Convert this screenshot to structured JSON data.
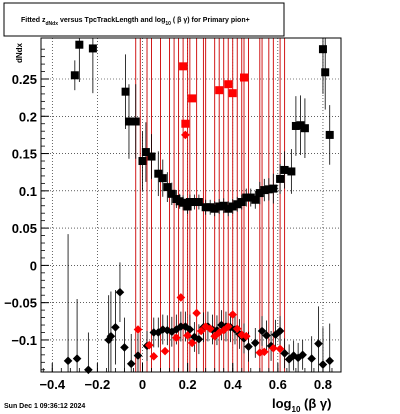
{
  "chart_data": {
    "type": "scatter",
    "title": {
      "prefix": "Fitted  z",
      "sub1": "dNdx",
      "mid": "  versus TpcTrackLength and log",
      "sub2": "10",
      "suffix": " ( β γ) for Primary pion+"
    },
    "ylabel": "dNdx",
    "xlabel": {
      "main": "log",
      "sub": "10",
      "suffix": " (β γ)"
    },
    "xlim": [
      -0.45,
      0.88
    ],
    "ylim": [
      -0.143,
      0.305
    ],
    "xticks": [
      -0.4,
      -0.2,
      0,
      0.2,
      0.4,
      0.6,
      0.8
    ],
    "xtick_labels": [
      "−0.4",
      "−0.2",
      "0",
      "0.2",
      "0.4",
      "0.6",
      "0.8"
    ],
    "yticks": [
      -0.1,
      -0.05,
      0,
      0.05,
      0.1,
      0.15,
      0.2,
      0.25
    ],
    "ytick_labels": [
      "−0.1",
      "−0.05",
      "0",
      "0.05",
      "0.1",
      "0.15",
      "0.2",
      "0.25"
    ],
    "grid": true,
    "series": [
      {
        "marker": "square",
        "color": "#000000",
        "points": [
          [
            -0.3,
            0.255,
            0.02
          ],
          [
            -0.28,
            0.296,
            0.05
          ],
          [
            -0.22,
            0.291,
            0.06
          ],
          [
            -0.075,
            0.233,
            0.05
          ],
          [
            -0.06,
            0.193,
            0.05
          ],
          [
            -0.03,
            0.193,
            0.05
          ],
          [
            0.0,
            0.14,
            0.04
          ],
          [
            0.015,
            0.152,
            0.04
          ],
          [
            0.04,
            0.146,
            0.03
          ],
          [
            0.07,
            0.123,
            0.03
          ],
          [
            0.09,
            0.117,
            0.025
          ],
          [
            0.11,
            0.105,
            0.02
          ],
          [
            0.13,
            0.096,
            0.015
          ],
          [
            0.15,
            0.089,
            0.012
          ],
          [
            0.165,
            0.086,
            0.01
          ],
          [
            0.18,
            0.084,
            0.01
          ],
          [
            0.2,
            0.079,
            0.01
          ],
          [
            0.21,
            0.085,
            0.01
          ],
          [
            0.23,
            0.085,
            0.01
          ],
          [
            0.25,
            0.085,
            0.01
          ],
          [
            0.28,
            0.078,
            0.01
          ],
          [
            0.3,
            0.078,
            0.01
          ],
          [
            0.32,
            0.076,
            0.01
          ],
          [
            0.34,
            0.079,
            0.01
          ],
          [
            0.36,
            0.08,
            0.01
          ],
          [
            0.38,
            0.076,
            0.01
          ],
          [
            0.4,
            0.079,
            0.01
          ],
          [
            0.42,
            0.082,
            0.01
          ],
          [
            0.44,
            0.085,
            0.01
          ],
          [
            0.46,
            0.091,
            0.012
          ],
          [
            0.48,
            0.091,
            0.012
          ],
          [
            0.5,
            0.088,
            0.012
          ],
          [
            0.52,
            0.097,
            0.015
          ],
          [
            0.54,
            0.101,
            0.015
          ],
          [
            0.56,
            0.102,
            0.015
          ],
          [
            0.58,
            0.103,
            0.02
          ],
          [
            0.61,
            0.116,
            0.02
          ],
          [
            0.63,
            0.128,
            0.025
          ],
          [
            0.66,
            0.126,
            0.03
          ],
          [
            0.68,
            0.187,
            0.04
          ],
          [
            0.7,
            0.188,
            0.04
          ],
          [
            0.72,
            0.184,
            0.04
          ],
          [
            0.8,
            0.29,
            0.06
          ],
          [
            0.81,
            0.259,
            0.05
          ],
          [
            0.83,
            0.175,
            0.04
          ]
        ]
      },
      {
        "marker": "diamond",
        "color": "#000000",
        "points": [
          [
            -0.33,
            -0.128,
            0.17
          ],
          [
            -0.29,
            -0.125,
            0.08
          ],
          [
            -0.24,
            -0.14,
            0.05
          ],
          [
            -0.15,
            -0.1,
            0.06
          ],
          [
            -0.14,
            -0.095,
            0.06
          ],
          [
            -0.12,
            -0.083,
            0.05
          ],
          [
            -0.1,
            -0.036,
            0.04
          ],
          [
            -0.08,
            -0.11,
            0.04
          ],
          [
            -0.05,
            -0.132,
            0.04
          ],
          [
            -0.02,
            -0.121,
            0.03
          ],
          [
            0.02,
            -0.108,
            0.02
          ],
          [
            0.05,
            -0.09,
            0.02
          ],
          [
            0.07,
            -0.09,
            0.02
          ],
          [
            0.09,
            -0.086,
            0.02
          ],
          [
            0.11,
            -0.087,
            0.02
          ],
          [
            0.13,
            -0.089,
            0.02
          ],
          [
            0.15,
            -0.086,
            0.02
          ],
          [
            0.17,
            -0.082,
            0.02
          ],
          [
            0.19,
            -0.082,
            0.02
          ],
          [
            0.21,
            -0.086,
            0.02
          ],
          [
            0.23,
            -0.096,
            0.02
          ],
          [
            0.25,
            -0.099,
            0.02
          ],
          [
            0.27,
            -0.083,
            0.02
          ],
          [
            0.29,
            -0.082,
            0.02
          ],
          [
            0.31,
            -0.086,
            0.02
          ],
          [
            0.33,
            -0.087,
            0.02
          ],
          [
            0.35,
            -0.08,
            0.02
          ],
          [
            0.37,
            -0.082,
            0.02
          ],
          [
            0.39,
            -0.083,
            0.02
          ],
          [
            0.41,
            -0.086,
            0.02
          ],
          [
            0.43,
            -0.092,
            0.02
          ],
          [
            0.45,
            -0.098,
            0.02
          ],
          [
            0.47,
            -0.109,
            0.02
          ],
          [
            0.5,
            -0.104,
            0.02
          ],
          [
            0.53,
            -0.088,
            0.02
          ],
          [
            0.55,
            -0.094,
            0.02
          ],
          [
            0.57,
            -0.108,
            0.02
          ],
          [
            0.59,
            -0.093,
            0.02
          ],
          [
            0.61,
            -0.088,
            0.02
          ],
          [
            0.63,
            -0.118,
            0.02
          ],
          [
            0.65,
            -0.126,
            0.02
          ],
          [
            0.67,
            -0.121,
            0.02
          ],
          [
            0.69,
            -0.124,
            0.02
          ],
          [
            0.71,
            -0.12,
            0.02
          ],
          [
            0.75,
            -0.125,
            0.03
          ],
          [
            0.78,
            -0.105,
            0.05
          ],
          [
            0.8,
            -0.133,
            0.05
          ],
          [
            0.83,
            -0.128,
            0.05
          ]
        ]
      },
      {
        "marker": "square",
        "color": "#ff0000",
        "points": [
          [
            0.18,
            0.267
          ],
          [
            0.19,
            0.19
          ],
          [
            0.22,
            0.224
          ],
          [
            0.34,
            0.235
          ],
          [
            0.38,
            0.243
          ],
          [
            0.4,
            0.231
          ],
          [
            0.45,
            0.252
          ]
        ]
      },
      {
        "marker": "diamond",
        "color": "#ff0000",
        "points": [
          [
            -0.02,
            -0.086
          ],
          [
            0.03,
            -0.107
          ],
          [
            0.05,
            -0.122
          ],
          [
            0.1,
            -0.115
          ],
          [
            0.15,
            -0.097
          ],
          [
            0.17,
            -0.043
          ],
          [
            0.2,
            -0.094
          ],
          [
            0.22,
            -0.104
          ],
          [
            0.24,
            -0.064
          ],
          [
            0.26,
            -0.088
          ],
          [
            0.28,
            -0.082
          ],
          [
            0.3,
            -0.085
          ],
          [
            0.32,
            -0.095
          ],
          [
            0.34,
            -0.09
          ],
          [
            0.36,
            -0.087
          ],
          [
            0.38,
            -0.082
          ],
          [
            0.4,
            -0.066
          ],
          [
            0.42,
            -0.085
          ],
          [
            0.44,
            -0.093
          ],
          [
            0.46,
            -0.095
          ],
          [
            0.52,
            -0.117
          ],
          [
            0.54,
            -0.116
          ],
          [
            0.58,
            -0.111
          ],
          [
            0.61,
            -0.112
          ],
          [
            0.19,
            0.175
          ]
        ]
      }
    ],
    "vertical_lines": {
      "color": "#cc0000",
      "x": [
        -0.03,
        -0.01,
        0.02,
        0.04,
        0.08,
        0.12,
        0.14,
        0.16,
        0.18,
        0.2,
        0.21,
        0.24,
        0.27,
        0.28,
        0.32,
        0.34,
        0.36,
        0.38,
        0.4,
        0.42,
        0.44,
        0.45,
        0.47,
        0.52,
        0.53,
        0.56,
        0.58,
        0.61,
        0.63
      ]
    }
  },
  "footer": {
    "timestamp": "Sun Dec  1 09:36:12 2024"
  }
}
